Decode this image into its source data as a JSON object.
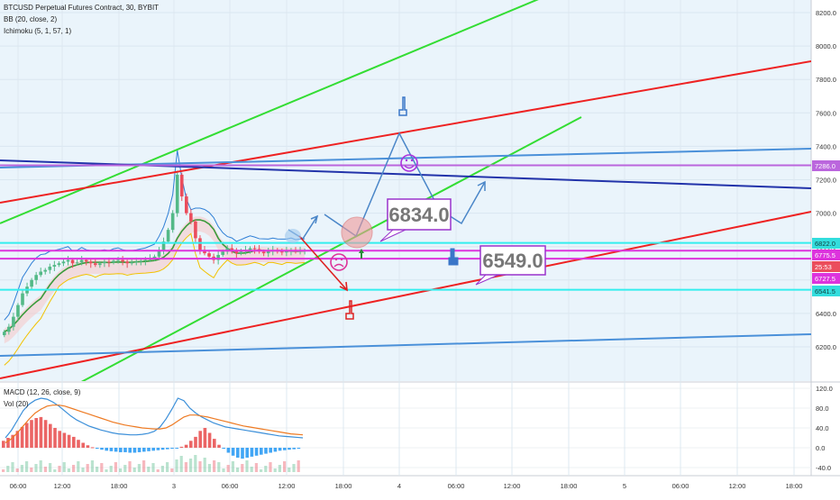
{
  "header": {
    "title": "BTCUSD Perpetual Futures Contract, 30, BYBIT",
    "bb": "BB (20, close, 2)",
    "ichimoku": "Ichimoku (5, 1, 57, 1)",
    "macd": "MACD (12, 26, close, 9)",
    "vol": "Vol (20)"
  },
  "colors": {
    "price_bg": "#eaf4fb",
    "candle_up": "#53b987",
    "candle_down": "#eb4d5c",
    "hist_pos": "#e84a4a",
    "hist_neg": "#2196f3",
    "green_channel": "#33dd33",
    "red_channel": "#ee2222",
    "blue_line": "#4a90d9",
    "navy_line": "#2233aa",
    "cyan_level": "#33eeee",
    "magenta_level": "#dd33dd",
    "purple_level": "#bb66dd",
    "callout_border": "#9933cc"
  },
  "chart_data": [
    {
      "type": "line",
      "pane": "price",
      "y_ticks": [
        "8200.0",
        "8000.0",
        "7800.0",
        "7600.0",
        "7400.0",
        "7200.0",
        "7000.0",
        "6800.0",
        "6600.0",
        "6400.0",
        "6200.0"
      ],
      "price_tags": [
        {
          "label": "7286.0",
          "color": "#bb66dd"
        },
        {
          "label": "6822.0",
          "color": "#33dddd"
        },
        {
          "label": "6775.5",
          "color": "#dd33dd"
        },
        {
          "label": "25:53",
          "color": "#eb4d5c"
        },
        {
          "label": "6727.5",
          "color": "#dd33dd"
        },
        {
          "label": "6541.5",
          "color": "#33dddd"
        }
      ],
      "annotations": [
        "6834.0",
        "6549.0"
      ],
      "horizontal_levels": [
        7286.0,
        6822.0,
        6775.5,
        6727.5,
        6541.5
      ],
      "candles_close": [
        6290,
        6320,
        6380,
        6450,
        6520,
        6560,
        6600,
        6630,
        6650,
        6660,
        6680,
        6690,
        6700,
        6710,
        6720,
        6700,
        6705,
        6720,
        6710,
        6700,
        6690,
        6700,
        6710,
        6705,
        6715,
        6720,
        6710,
        6700,
        6705,
        6710,
        6715,
        6720,
        6730,
        6740,
        6780,
        6830,
        6900,
        7000,
        7230,
        7100,
        7000,
        6950,
        6850,
        6780,
        6760,
        6740,
        6720,
        6750,
        6770,
        6790,
        6780,
        6760,
        6770,
        6780,
        6790,
        6785,
        6770,
        6760,
        6775,
        6780,
        6770,
        6765,
        6775,
        6780,
        6770,
        6775,
        6776
      ]
    },
    {
      "type": "bar",
      "pane": "macd",
      "y_ticks": [
        "120.0",
        "80.0",
        "40.0",
        "0.0",
        "-40.0"
      ],
      "histogram": [
        14,
        20,
        26,
        34,
        42,
        50,
        56,
        60,
        62,
        56,
        48,
        40,
        34,
        30,
        26,
        22,
        16,
        10,
        5,
        1,
        -2,
        -4,
        -6,
        -7,
        -8,
        -9,
        -9,
        -10,
        -10,
        -9,
        -8,
        -7,
        -6,
        -5,
        -4,
        -3,
        -2,
        -1,
        2,
        6,
        14,
        22,
        34,
        40,
        30,
        18,
        6,
        -2,
        -10,
        -16,
        -20,
        -22,
        -20,
        -18,
        -16,
        -14,
        -12,
        -10,
        -8,
        -6,
        -5,
        -4,
        -3,
        -2
      ],
      "macd_line": [
        20,
        35,
        55,
        75,
        88,
        96,
        100,
        98,
        92,
        84,
        74,
        64,
        56,
        50,
        44,
        40,
        36,
        33,
        30,
        28,
        27,
        26,
        26,
        27,
        29,
        33,
        42,
        58,
        78,
        100,
        95,
        80,
        70,
        62,
        56,
        50,
        46,
        42,
        40,
        38,
        36,
        34,
        32,
        30,
        28,
        26,
        24,
        23,
        22,
        21,
        20
      ],
      "signal_line": [
        10,
        18,
        30,
        44,
        58,
        70,
        78,
        84,
        86,
        86,
        84,
        80,
        76,
        72,
        68,
        64,
        60,
        56,
        52,
        49,
        46,
        44,
        42,
        40,
        39,
        38,
        38,
        40,
        46,
        54,
        62,
        66,
        66,
        64,
        62,
        59,
        56,
        53,
        50,
        47,
        44,
        42,
        40,
        38,
        36,
        34,
        32,
        30,
        28,
        27,
        26
      ]
    }
  ],
  "x_axis": {
    "labels": [
      "06:00",
      "12:00",
      "18:00",
      "3",
      "06:00",
      "12:00",
      "18:00",
      "4",
      "06:00",
      "12:00",
      "18:00",
      "5",
      "06:00",
      "12:00",
      "18:00"
    ]
  }
}
